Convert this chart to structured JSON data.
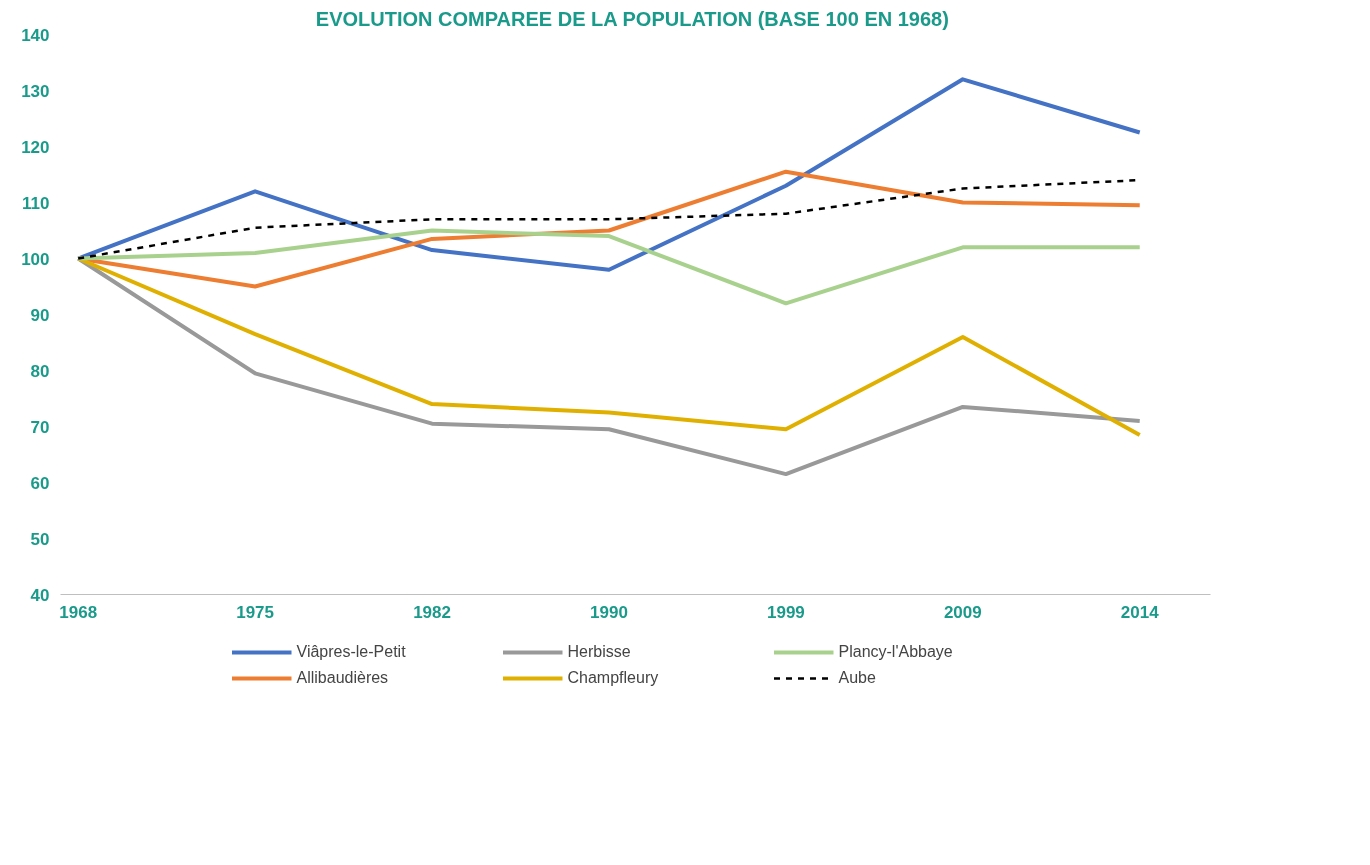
{
  "chart_data": {
    "type": "line",
    "title": "EVOLUTION COMPAREE DE LA POPULATION  (BASE 100 EN 1968)",
    "categories": [
      "1968",
      "1975",
      "1982",
      "1990",
      "1999",
      "2009",
      "2014"
    ],
    "ylim": [
      40,
      140
    ],
    "yticks": [
      40,
      50,
      60,
      70,
      80,
      90,
      100,
      110,
      120,
      130,
      140
    ],
    "legend": "bottom",
    "series": [
      {
        "name": "Viâpres-le-Petit",
        "color": "#4472c4",
        "values": [
          100,
          112,
          101.5,
          98,
          113,
          132,
          122.5
        ]
      },
      {
        "name": "Allibaudières",
        "color": "#ed7d31",
        "values": [
          100,
          95,
          103.5,
          105,
          115.5,
          110,
          109.5
        ]
      },
      {
        "name": "Herbisse",
        "color": "#999999",
        "values": [
          100,
          79.5,
          70.5,
          69.5,
          61.5,
          73.5,
          71
        ]
      },
      {
        "name": "Champfleury",
        "color": "#e0b000",
        "values": [
          100,
          86.5,
          74,
          72.5,
          69.5,
          86,
          68.5
        ]
      },
      {
        "name": "Plancy-l'Abbaye",
        "color": "#a9d18e",
        "values": [
          100,
          101,
          105,
          104,
          92,
          102,
          102
        ]
      },
      {
        "name": "Aube",
        "color": "#000000",
        "line_style": "dashed",
        "values": [
          100,
          105.5,
          107,
          107,
          108,
          112.5,
          114
        ]
      }
    ]
  }
}
